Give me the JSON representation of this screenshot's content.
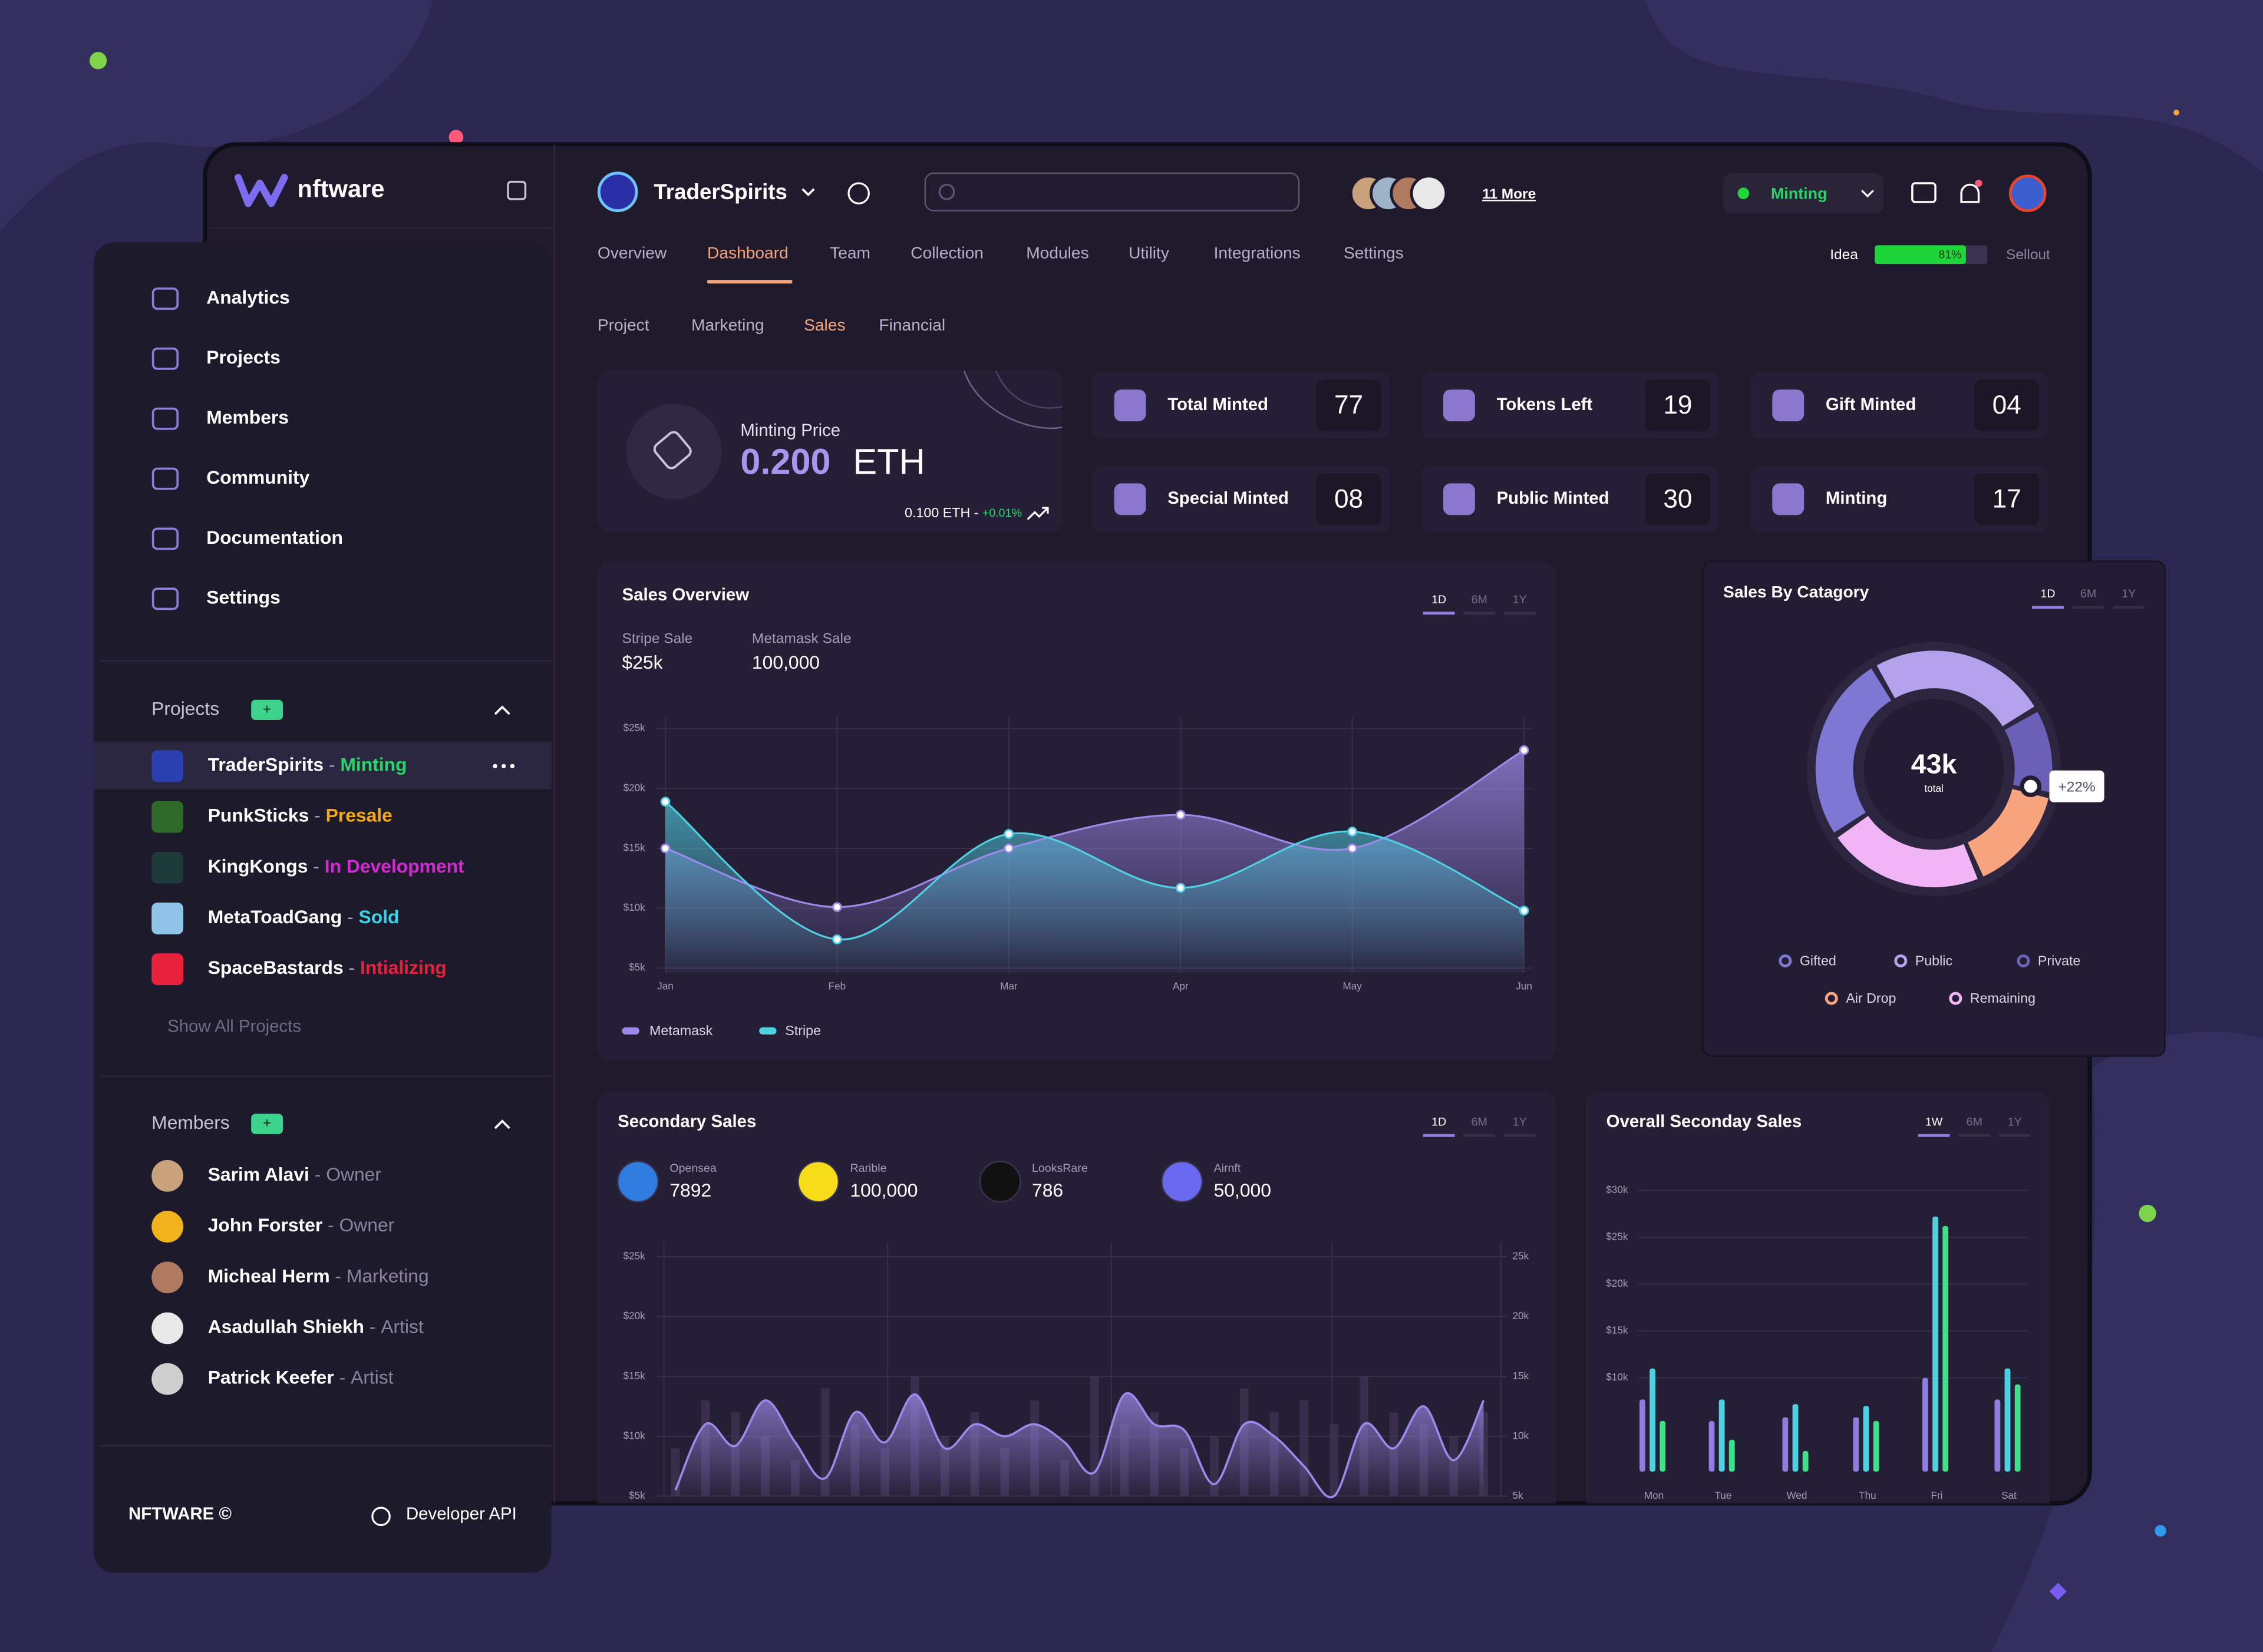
{
  "brand": "nftware",
  "sidebar": {
    "nav": [
      "Analytics",
      "Projects",
      "Members",
      "Community",
      "Documentation",
      "Settings"
    ],
    "separator": " - ",
    "projects": {
      "title": "Projects",
      "add": "+",
      "show_all": "Show All Projects",
      "items": [
        {
          "name": "TraderSpirits",
          "status": "Minting",
          "color": "#27d66b"
        },
        {
          "name": "PunkSticks",
          "status": "Presale",
          "color": "#f2a91b"
        },
        {
          "name": "KingKongs",
          "status": "In Development",
          "color": "#d22bd2"
        },
        {
          "name": "MetaToadGang",
          "status": "Sold",
          "color": "#35d4e8"
        },
        {
          "name": "SpaceBastards",
          "status": "Intializing",
          "color": "#e8213d"
        }
      ]
    },
    "members": {
      "title": "Members",
      "add": "+",
      "items": [
        {
          "name": "Sarim Alavi",
          "role": "Owner"
        },
        {
          "name": "John Forster",
          "role": "Owner"
        },
        {
          "name": "Micheal Herm",
          "role": "Marketing"
        },
        {
          "name": "Asadullah Shiekh",
          "role": "Artist"
        },
        {
          "name": "Patrick Keefer",
          "role": "Artist"
        }
      ]
    },
    "footer": {
      "copyright": "NFTWARE ©",
      "api": "Developer API"
    }
  },
  "header": {
    "project": "TraderSpirits",
    "more": "11 More",
    "status": "Minting"
  },
  "tabs": {
    "items": [
      "Overview",
      "Dashboard",
      "Team",
      "Collection",
      "Modules",
      "Utility",
      "Integrations",
      "Settings"
    ],
    "active": 1
  },
  "progress": {
    "start": "Idea",
    "end": "Sellout",
    "value": 81,
    "label": "81%"
  },
  "subtabs": {
    "items": [
      "Project",
      "Marketing",
      "Sales",
      "Financial"
    ],
    "active": 2
  },
  "minting": {
    "label": "Minting Price",
    "price": "0.200",
    "unit": "ETH",
    "base": "0.100 ETH",
    "change": "+0.01%"
  },
  "stats": [
    {
      "label": "Total Minted",
      "value": "77"
    },
    {
      "label": "Tokens Left",
      "value": "19"
    },
    {
      "label": "Gift Minted",
      "value": "04"
    },
    {
      "label": "Special Minted",
      "value": "08"
    },
    {
      "label": "Public Minted",
      "value": "30"
    },
    {
      "label": "Minting",
      "value": "17"
    }
  ],
  "sales_overview": {
    "type": "line",
    "title": "Sales Overview",
    "periods": [
      "1D",
      "6M",
      "1Y"
    ],
    "active_period": 0,
    "summary": [
      {
        "label": "Stripe Sale",
        "value": "$25k"
      },
      {
        "label": "Metamask Sale",
        "value": "100,000"
      }
    ],
    "categories": [
      "Jan",
      "Feb",
      "Mar",
      "Apr",
      "May",
      "Jun"
    ],
    "ylim": [
      4,
      26
    ],
    "yticks": [
      {
        "value": 5,
        "label": "$5k"
      },
      {
        "value": 10,
        "label": "$10k"
      },
      {
        "value": 15,
        "label": "$15k"
      },
      {
        "value": 20,
        "label": "$20k"
      },
      {
        "value": 25,
        "label": "$25k"
      }
    ],
    "grid": true,
    "series": [
      {
        "name": "Metamask",
        "color": "#9d89ea",
        "values": [
          15,
          10.1,
          15,
          17.8,
          15,
          23.2
        ]
      },
      {
        "name": "Stripe",
        "color": "#4fd0e3",
        "values": [
          18.9,
          7.4,
          16.2,
          11.7,
          16.4,
          9.8
        ]
      }
    ]
  },
  "sales_by_category": {
    "type": "pie",
    "title": "Sales By Catagory",
    "periods": [
      "1D",
      "6M",
      "1Y"
    ],
    "active_period": 0,
    "total": "43k",
    "total_label": "total",
    "badge": "+22%",
    "categories": [
      "Gifted",
      "Public",
      "Private",
      "Air Drop",
      "Remaining"
    ],
    "colors": [
      "#7f77d4",
      "#b5a2ec",
      "#6a60b8",
      "#f8a47e",
      "#f1b5f6"
    ],
    "values": [
      26,
      25,
      12,
      15,
      22
    ]
  },
  "secondary_sales": {
    "type": "area",
    "title": "Secondary Sales",
    "periods": [
      "1D",
      "6M",
      "1Y"
    ],
    "active_period": 0,
    "sources": [
      {
        "name": "Opensea",
        "value": "7892",
        "color": "#2f7de1"
      },
      {
        "name": "Rarible",
        "value": "100,000",
        "color": "#f7dc1a"
      },
      {
        "name": "LooksRare",
        "value": "786",
        "color": "#111111"
      },
      {
        "name": "Airnft",
        "value": "50,000",
        "color": "#6a6af0"
      }
    ],
    "ylim": [
      5,
      25
    ],
    "yticks": [
      {
        "value": 5,
        "label": "$5k"
      },
      {
        "value": 10,
        "label": "$10k"
      },
      {
        "value": 15,
        "label": "$15k"
      },
      {
        "value": 20,
        "label": "$20k"
      },
      {
        "value": 25,
        "label": "$25k"
      }
    ],
    "y2lim": [
      5,
      25
    ],
    "y2ticks": [
      {
        "value": 5,
        "label": "5k"
      },
      {
        "value": 10,
        "label": "10k"
      },
      {
        "value": 15,
        "label": "15k"
      },
      {
        "value": 20,
        "label": "20k"
      },
      {
        "value": 25,
        "label": "25k"
      }
    ],
    "series": [
      {
        "type": "bar",
        "color": "#3d3352",
        "values": [
          9,
          13,
          12,
          10,
          8,
          14,
          11,
          9,
          15,
          10,
          12,
          9,
          13,
          8,
          15,
          11,
          12,
          9,
          10,
          14,
          12,
          13,
          11,
          15,
          12,
          11,
          10,
          12
        ]
      },
      {
        "type": "area",
        "color": "#9d89ea",
        "values": [
          5.5,
          11,
          9.2,
          13,
          9.5,
          6.5,
          12,
          9.5,
          13.5,
          9,
          11,
          10,
          11,
          9.5,
          7,
          13.5,
          11,
          10.5,
          6,
          11,
          10,
          7.5,
          5,
          11,
          9,
          12.5,
          8,
          13
        ]
      }
    ]
  },
  "overall_sales": {
    "type": "bar",
    "title": "Overall Seconday Sales",
    "periods": [
      "1W",
      "6M",
      "1Y"
    ],
    "active_period": 0,
    "categories": [
      "Mon",
      "Tue",
      "Wed",
      "Thu",
      "Fri",
      "Sat"
    ],
    "ylim": [
      0,
      30
    ],
    "yticks": [
      {
        "value": 10,
        "label": "$10k"
      },
      {
        "value": 15,
        "label": "$15k"
      },
      {
        "value": 20,
        "label": "$20k"
      },
      {
        "value": 25,
        "label": "$25k"
      },
      {
        "value": 30,
        "label": "$30k"
      }
    ],
    "series": [
      {
        "color": "#8f7de0",
        "values": [
          7.7,
          5.4,
          5.8,
          5.8,
          10,
          7.7
        ]
      },
      {
        "color": "#4fd0e3",
        "values": [
          11,
          7.7,
          7.2,
          7,
          27.2,
          11
        ]
      },
      {
        "color": "#3ee08a",
        "values": [
          5.4,
          3.4,
          2.2,
          5.4,
          26.2,
          9.3
        ]
      }
    ]
  }
}
